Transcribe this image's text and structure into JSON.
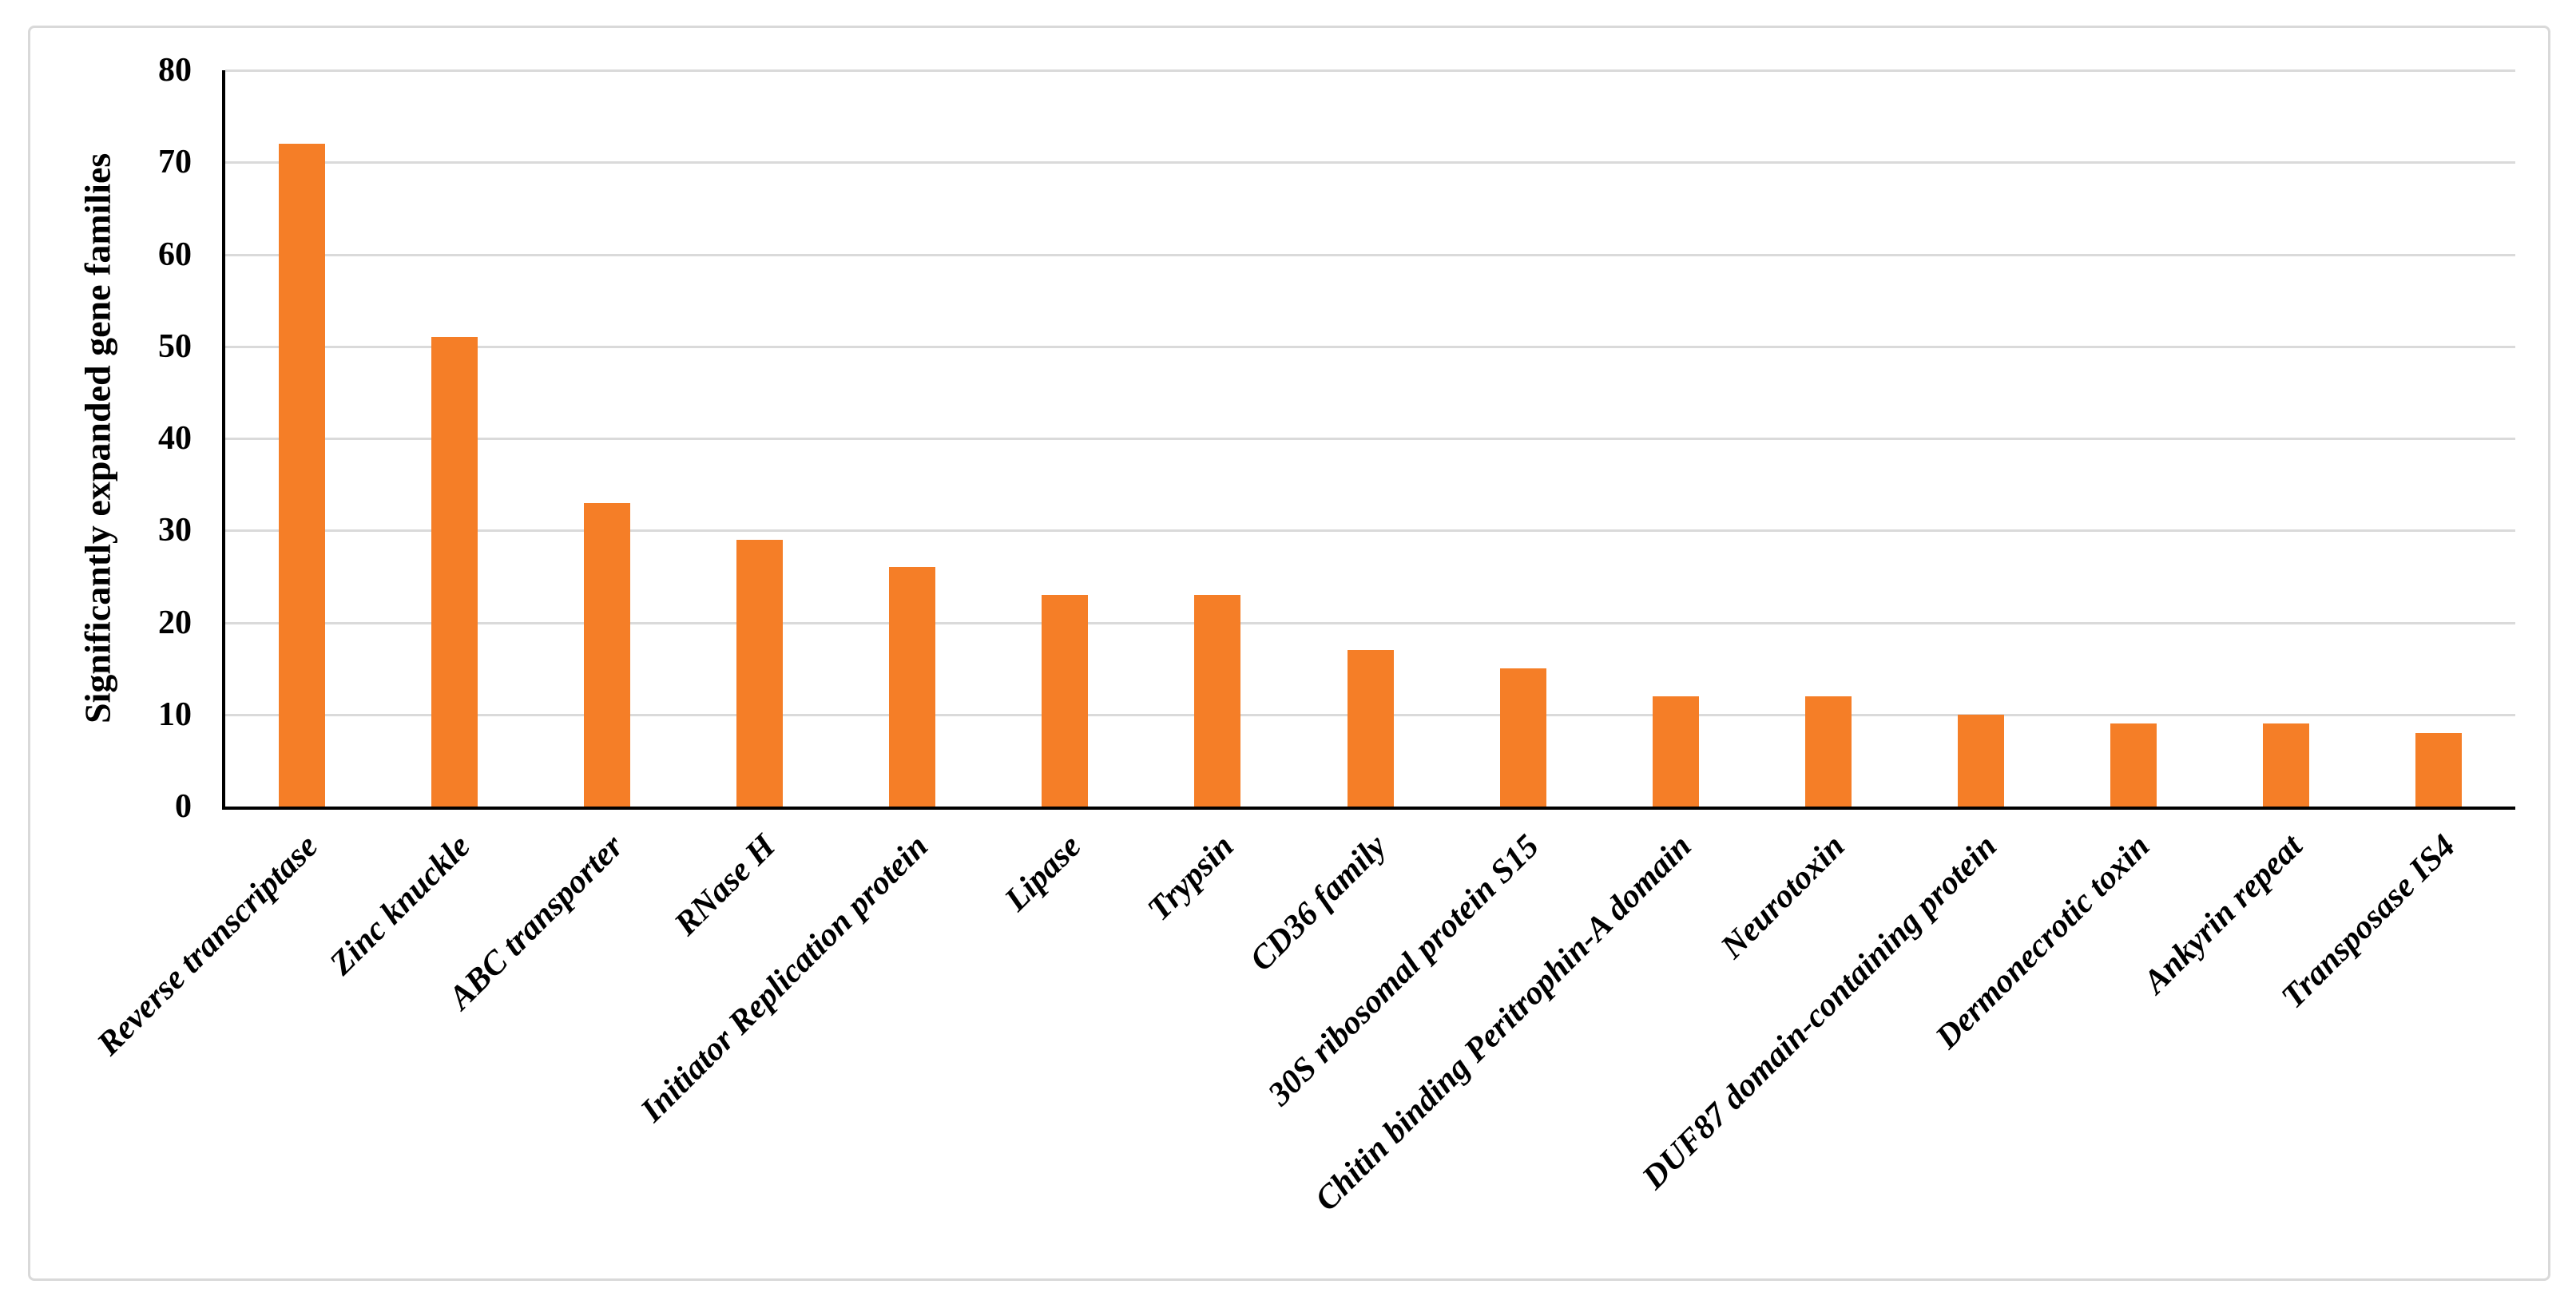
{
  "figure": {
    "background_color": "#ffffff",
    "frame_border_color": "#d9d9d9"
  },
  "chart_data": {
    "type": "bar",
    "title": "",
    "xlabel": "",
    "ylabel": "Significantly expanded gene families",
    "categories": [
      "Reverse transcriptase",
      "Zinc knuckle",
      "ABC transporter",
      "RNase H",
      "Initiator Replication protein",
      "Lipase",
      "Trypsin",
      "CD36 family",
      "30S ribosomal protein S15",
      "Chitin binding Peritrophin-A domain",
      "Neurotoxin",
      "DUF87 domain-containing protein",
      "Dermonecrotic toxin",
      "Ankyrin repeat",
      "Transposase IS4"
    ],
    "values": [
      72,
      51,
      33,
      29,
      26,
      23,
      23,
      17,
      15,
      12,
      12,
      10,
      9,
      9,
      8
    ],
    "ylim": [
      0,
      80
    ],
    "yticks": [
      0,
      10,
      20,
      30,
      40,
      50,
      60,
      70,
      80
    ],
    "grid": "horizontal",
    "legend_position": "none",
    "bar_color": "#f57e27",
    "gridline_color": "#dadada",
    "axis_color": "#000000",
    "text_color": "#000000"
  }
}
